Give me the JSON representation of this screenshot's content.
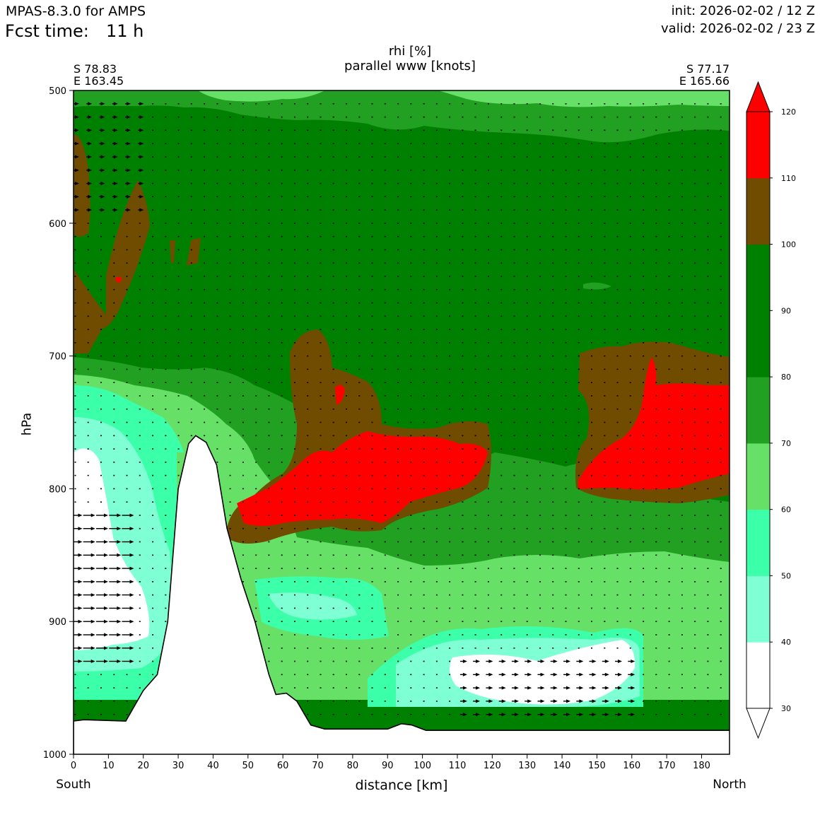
{
  "header": {
    "model": "MPAS-8.3.0 for AMPS",
    "fcst_label": "Fcst time:",
    "fcst_value": "11 h",
    "init": "init: 2026-02-02 / 12 Z",
    "valid": "valid: 2026-02-02 / 23 Z"
  },
  "cross_section": {
    "start_lat": "S 78.83",
    "start_lon": "E 163.45",
    "end_lat": "S 77.17",
    "end_lon": "E 165.66",
    "left_end_label": "South",
    "right_end_label": "North"
  },
  "chart_data": {
    "type": "heatmap",
    "title": "rhi [%]",
    "subtitle": "parallel www [knots]",
    "xlabel": "distance [km]",
    "ylabel": "hPa",
    "xlim": [
      0,
      188
    ],
    "ylim": [
      1000,
      500
    ],
    "x_ticks": [
      "0",
      "10",
      "20",
      "30",
      "40",
      "50",
      "60",
      "70",
      "80",
      "90",
      "100",
      "110",
      "120",
      "130",
      "140",
      "150",
      "160",
      "170",
      "180"
    ],
    "y_ticks": [
      "500",
      "600",
      "700",
      "800",
      "900",
      "1000"
    ],
    "colorbar": {
      "levels": [
        "30",
        "40",
        "50",
        "60",
        "70",
        "80",
        "90",
        "100",
        "110",
        "120"
      ],
      "colors": [
        "#ffffff",
        "#7fffd4",
        "#3cffaa",
        "#66e066",
        "#22a022",
        "#008000",
        "#008000",
        "#704c00",
        "#ff0000"
      ],
      "extend": "both"
    },
    "terrain_surface_hPa": [
      [
        0,
        975
      ],
      [
        3,
        974
      ],
      [
        15,
        975
      ],
      [
        20,
        952
      ],
      [
        24,
        940
      ],
      [
        27,
        900
      ],
      [
        30,
        800
      ],
      [
        33,
        766
      ],
      [
        35,
        760
      ],
      [
        38,
        765
      ],
      [
        41,
        782
      ],
      [
        44,
        830
      ],
      [
        48,
        868
      ],
      [
        52,
        900
      ],
      [
        56,
        940
      ],
      [
        58,
        955
      ],
      [
        61,
        954
      ],
      [
        64,
        960
      ],
      [
        68,
        978
      ],
      [
        72,
        981
      ],
      [
        90,
        981
      ],
      [
        94,
        977
      ],
      [
        97,
        978
      ],
      [
        101,
        982
      ],
      [
        188,
        982
      ]
    ],
    "colorbar_labels_shown": [
      "30",
      "40",
      "50",
      "60",
      "70",
      "80",
      "90",
      "100",
      "110",
      "120"
    ],
    "grid": false
  }
}
